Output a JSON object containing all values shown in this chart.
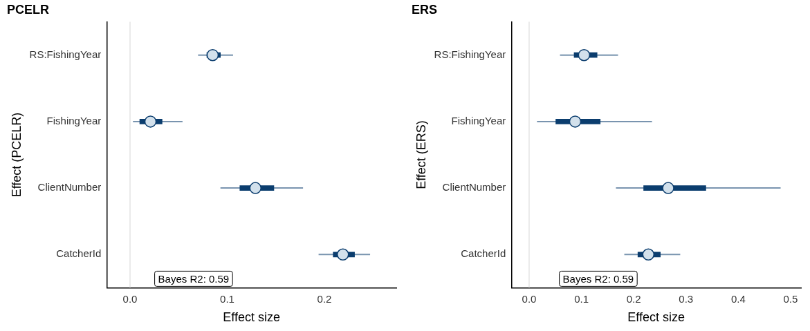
{
  "chart_data": [
    {
      "type": "box",
      "title": "PCELR",
      "orientation": "horizontal",
      "xlabel": "Effect size",
      "ylabel": "Effect (PCELR)",
      "categories": [
        "RS:FishingYear",
        "FishingYear",
        "ClientNumber",
        "CatcherId"
      ],
      "xlim": [
        -0.024,
        0.274
      ],
      "xticks": [
        {
          "value": 0,
          "label": "0.0"
        },
        0.1,
        0.2
      ],
      "ref_lines": [
        {
          "axis": "x",
          "value": 0,
          "color": "#dddddd"
        }
      ],
      "annotations": [
        "Bayes R2: 0.59"
      ],
      "series": [
        {
          "color": "#0b3d6e",
          "boxes": [
            {
              "low": 0.07,
              "q1": 0.079,
              "median": 0.085,
              "q3": 0.093,
              "high": 0.106
            },
            {
              "low": 0.003,
              "q1": 0.01,
              "median": 0.021,
              "q3": 0.033,
              "high": 0.054
            },
            {
              "low": 0.093,
              "q1": 0.113,
              "median": 0.129,
              "q3": 0.148,
              "high": 0.178
            },
            {
              "low": 0.194,
              "q1": 0.209,
              "median": 0.219,
              "q3": 0.231,
              "high": 0.247
            }
          ]
        }
      ]
    },
    {
      "type": "box",
      "title": "ERS",
      "orientation": "horizontal",
      "xlabel": "Effect size",
      "ylabel": "Effect (ERS)",
      "categories": [
        "RS:FishingYear",
        "FishingYear",
        "ClientNumber",
        "CatcherId"
      ],
      "xlim": [
        -0.034,
        0.52
      ],
      "xticks": [
        {
          "value": 0,
          "label": "0.0"
        },
        0.1,
        0.2,
        0.3,
        0.4,
        0.5
      ],
      "ref_lines": [
        {
          "axis": "x",
          "value": 0,
          "color": "#dddddd"
        }
      ],
      "annotations": [
        "Bayes R2: 0.59"
      ],
      "series": [
        {
          "color": "#0b3d6e",
          "boxes": [
            {
              "low": 0.059,
              "q1": 0.086,
              "median": 0.105,
              "q3": 0.13,
              "high": 0.17
            },
            {
              "low": 0.015,
              "q1": 0.051,
              "median": 0.088,
              "q3": 0.136,
              "high": 0.235
            },
            {
              "low": 0.166,
              "q1": 0.219,
              "median": 0.266,
              "q3": 0.338,
              "high": 0.481
            },
            {
              "low": 0.182,
              "q1": 0.208,
              "median": 0.228,
              "q3": 0.251,
              "high": 0.289
            }
          ]
        }
      ]
    }
  ]
}
